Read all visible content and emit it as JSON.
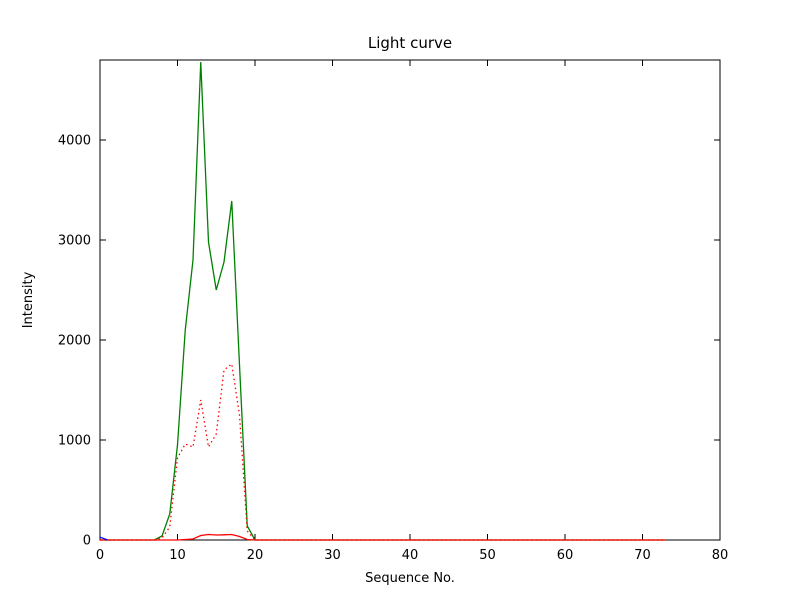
{
  "figure": {
    "background": "#ffffff",
    "frame_color": "#000000"
  },
  "chart_data": {
    "type": "line",
    "title": "Light curve",
    "xlabel": "Sequence No.",
    "ylabel": "Intensity",
    "xlim": [
      0,
      80
    ],
    "ylim": [
      0,
      4800
    ],
    "xticks": [
      0,
      10,
      20,
      30,
      40,
      50,
      60,
      70,
      80
    ],
    "yticks": [
      0,
      1000,
      2000,
      3000,
      4000
    ],
    "grid": false,
    "legend": null,
    "series": [
      {
        "name": "green-solid-line",
        "color": "#008000",
        "style": "solid",
        "x": [
          0,
          7,
          8,
          9,
          10,
          11,
          12,
          13,
          14,
          15,
          16,
          17,
          18,
          19,
          20,
          30,
          40,
          50,
          60,
          70,
          73
        ],
        "y": [
          0,
          0,
          40,
          260,
          950,
          2100,
          2800,
          4780,
          2980,
          2500,
          2780,
          3390,
          1750,
          140,
          0,
          0,
          0,
          0,
          0,
          0,
          0
        ]
      },
      {
        "name": "red-dotted-line",
        "color": "#ff0000",
        "style": "dotted",
        "x": [
          0,
          7,
          8,
          9,
          10,
          11,
          12,
          13,
          14,
          15,
          16,
          17,
          18,
          19,
          20,
          30,
          40,
          50,
          60,
          70,
          73
        ],
        "y": [
          0,
          0,
          20,
          130,
          820,
          960,
          930,
          1400,
          930,
          1060,
          1700,
          1760,
          1250,
          90,
          0,
          0,
          0,
          0,
          0,
          0,
          0
        ]
      },
      {
        "name": "red-solid-line",
        "color": "#ff0000",
        "style": "solid",
        "x": [
          0,
          10,
          12,
          13,
          14,
          15,
          16,
          17,
          18,
          19,
          20,
          73
        ],
        "y": [
          0,
          0,
          10,
          45,
          55,
          50,
          52,
          55,
          35,
          5,
          0,
          0
        ]
      },
      {
        "name": "blue-solid-line",
        "color": "#0000ff",
        "style": "solid",
        "x": [
          0,
          1
        ],
        "y": [
          28,
          0
        ]
      }
    ]
  }
}
